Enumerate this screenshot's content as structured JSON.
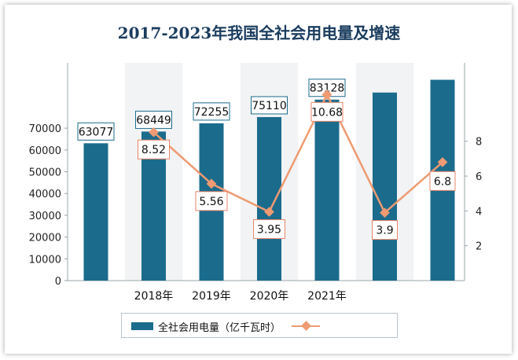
{
  "chart_data": {
    "type": "bar+line",
    "title": "2017-2023年我国全社会用电量及增速",
    "categories": [
      "",
      "2018年",
      "2019年",
      "2020年",
      "2021年",
      "",
      ""
    ],
    "series": [
      {
        "name": "全社会用电量（亿千瓦时）",
        "type": "bar",
        "axis": "left",
        "values": [
          63077,
          68449,
          72255,
          75110,
          83128,
          86372,
          92241
        ],
        "labels": [
          "63077",
          "68449",
          "72255",
          "75110",
          "83128",
          "",
          ""
        ]
      },
      {
        "name": "",
        "type": "line",
        "axis": "right",
        "values": [
          null,
          8.52,
          5.56,
          3.95,
          10.68,
          3.9,
          6.8
        ],
        "labels": [
          "",
          "8.52",
          "5.56",
          "3.95",
          "10.68",
          "3.9",
          "6.8"
        ]
      }
    ],
    "y_left": {
      "ylim": [
        0,
        100000
      ],
      "ticks": [
        0,
        10000,
        20000,
        30000,
        40000,
        50000,
        60000,
        70000
      ],
      "tick_labels": [
        "0",
        "10000",
        "20000",
        "30000",
        "40000",
        "50000",
        "60000",
        "70000"
      ]
    },
    "y_right": {
      "ylim": [
        0,
        12.5
      ],
      "ticks": [
        2,
        4,
        6,
        8
      ],
      "tick_labels": [
        "2",
        "4",
        "6",
        "8"
      ]
    },
    "grid": false,
    "legend": "bottom",
    "colors": {
      "bar": "#1b6b8c",
      "line": "#ef9a72",
      "label_border": "#1b6b8c",
      "rate_border": "#e8866a"
    }
  }
}
